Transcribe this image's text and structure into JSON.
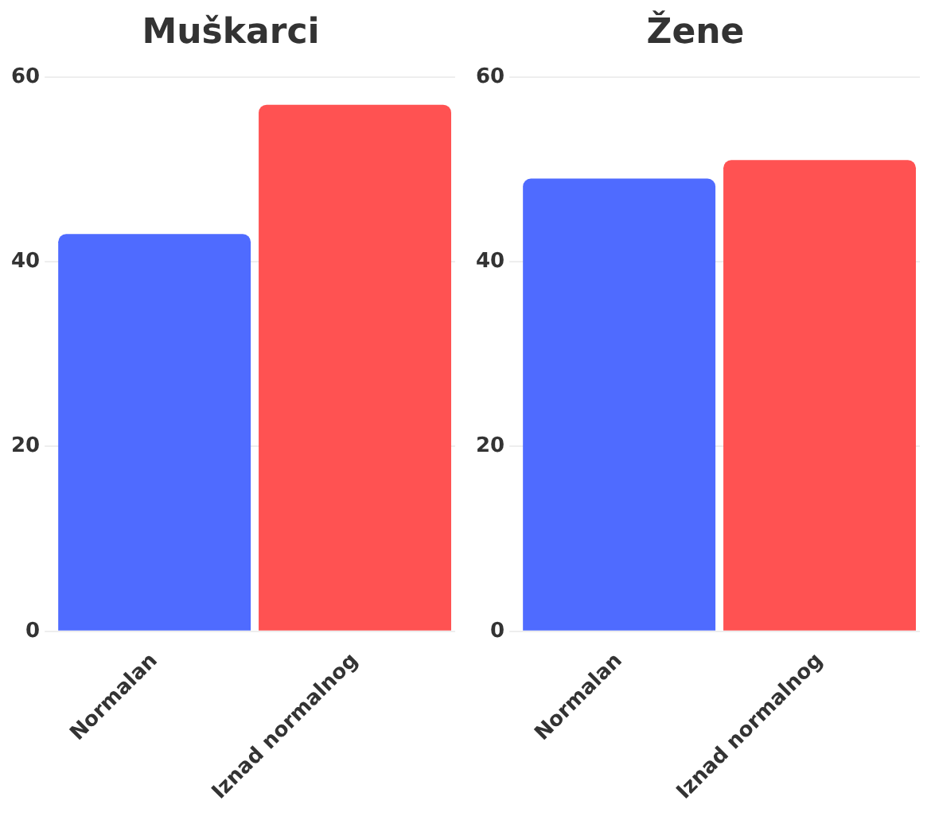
{
  "chart_data": [
    {
      "type": "bar",
      "title": "Muškarci",
      "categories": [
        "Normalan",
        "Iznad normalnog"
      ],
      "values": [
        43,
        57
      ],
      "colors": [
        "#4f6bff",
        "#ff5252"
      ],
      "ylim": [
        0,
        60
      ],
      "yticks": [
        0,
        20,
        40,
        60
      ],
      "grid": "y",
      "legend": false
    },
    {
      "type": "bar",
      "title": "Žene",
      "categories": [
        "Normalan",
        "Iznad normalnog"
      ],
      "values": [
        49,
        51
      ],
      "colors": [
        "#4f6bff",
        "#ff5252"
      ],
      "ylim": [
        0,
        60
      ],
      "yticks": [
        0,
        20,
        40,
        60
      ],
      "grid": "y",
      "legend": false
    }
  ]
}
